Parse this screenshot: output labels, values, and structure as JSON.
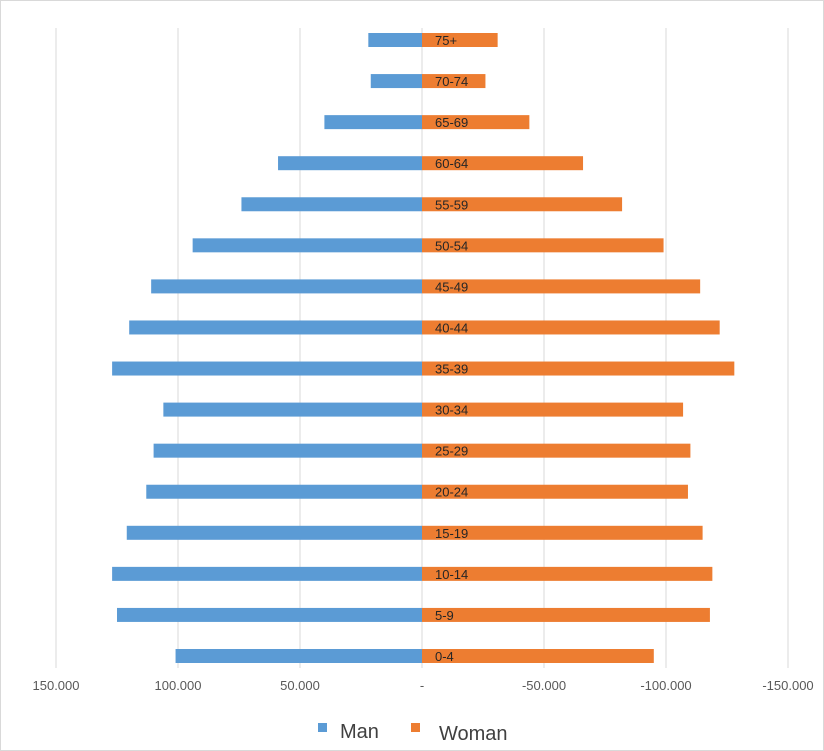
{
  "chart_data": {
    "type": "bar",
    "orientation": "horizontal",
    "layout": "population-pyramid",
    "categories": [
      "0-4",
      "5-9",
      "10-14",
      "15-19",
      "20-24",
      "25-29",
      "30-34",
      "35-39",
      "40-44",
      "45-49",
      "50-54",
      "55-59",
      "60-64",
      "65-69",
      "70-74",
      "75+"
    ],
    "series": [
      {
        "name": "Man",
        "color": "#5b9bd5",
        "direction": "left",
        "values": [
          101000,
          125000,
          127000,
          121000,
          113000,
          110000,
          106000,
          127000,
          120000,
          111000,
          94000,
          74000,
          59000,
          40000,
          21000,
          22000
        ]
      },
      {
        "name": "Woman",
        "color": "#ed7d31",
        "direction": "right",
        "values": [
          95000,
          118000,
          119000,
          115000,
          109000,
          110000,
          107000,
          128000,
          122000,
          114000,
          99000,
          82000,
          66000,
          44000,
          26000,
          31000
        ]
      }
    ],
    "xlim": [
      -150000,
      150000
    ],
    "x_tick_labels": [
      "150.000",
      "100.000",
      "50.000",
      "-",
      "-50.000",
      "-100.000",
      "-150.000"
    ],
    "grid": true,
    "legend": "bottom",
    "title": "",
    "xlabel": "",
    "ylabel": ""
  }
}
